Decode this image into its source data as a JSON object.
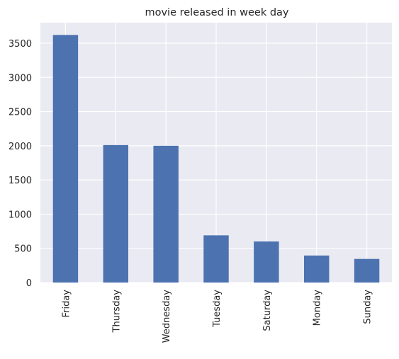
{
  "chart_data": {
    "type": "bar",
    "title": "movie released in week day",
    "xlabel": "",
    "ylabel": "",
    "categories": [
      "Friday",
      "Thursday",
      "Wednesday",
      "Tuesday",
      "Saturday",
      "Monday",
      "Sunday"
    ],
    "values": [
      3620,
      2010,
      2000,
      690,
      600,
      395,
      345
    ],
    "ylim": [
      0,
      3800
    ],
    "yticks": [
      0,
      500,
      1000,
      1500,
      2000,
      2500,
      3000,
      3500
    ],
    "ytick_labels": [
      "0",
      "500",
      "1000",
      "1500",
      "2000",
      "2500",
      "3000",
      "3500"
    ],
    "grid": true,
    "legend": "none"
  },
  "colors": {
    "bar": "#4c72b0",
    "plot_background": "#eaeaf2",
    "grid": "#ffffff",
    "text": "#262626"
  }
}
